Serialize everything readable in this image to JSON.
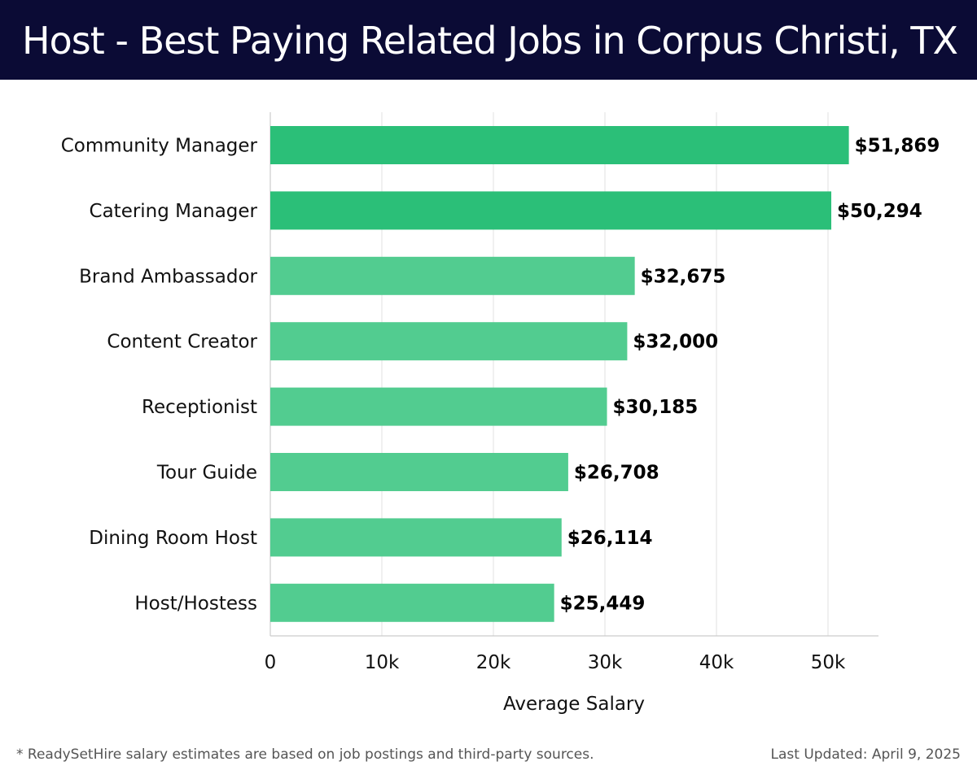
{
  "header": {
    "title": "Host - Best Paying Related Jobs in Corpus Christi, TX"
  },
  "chart_data": {
    "type": "bar",
    "orientation": "horizontal",
    "categories": [
      "Community Manager",
      "Catering Manager",
      "Brand Ambassador",
      "Content Creator",
      "Receptionist",
      "Tour Guide",
      "Dining Room Host",
      "Host/Hostess"
    ],
    "values": [
      51869,
      50294,
      32675,
      32000,
      30185,
      26708,
      26114,
      25449
    ],
    "value_labels": [
      "$51,869",
      "$50,294",
      "$32,675",
      "$32,000",
      "$30,185",
      "$26,708",
      "$26,114",
      "$25,449"
    ],
    "xlabel": "Average Salary",
    "ylabel": "",
    "xlim": [
      0,
      54500
    ],
    "xticks": [
      0,
      10000,
      20000,
      30000,
      40000,
      50000
    ],
    "xtick_labels": [
      "0",
      "10k",
      "20k",
      "30k",
      "40k",
      "50k"
    ],
    "grid": true,
    "colors": {
      "top": "#2bbf78",
      "rest": "#52cc90",
      "grid": "#e6e6e6",
      "axis": "#cccccc"
    }
  },
  "footer": {
    "note": "* ReadySetHire salary estimates are based on job postings and third-party sources.",
    "updated": "Last Updated: April 9, 2025"
  }
}
